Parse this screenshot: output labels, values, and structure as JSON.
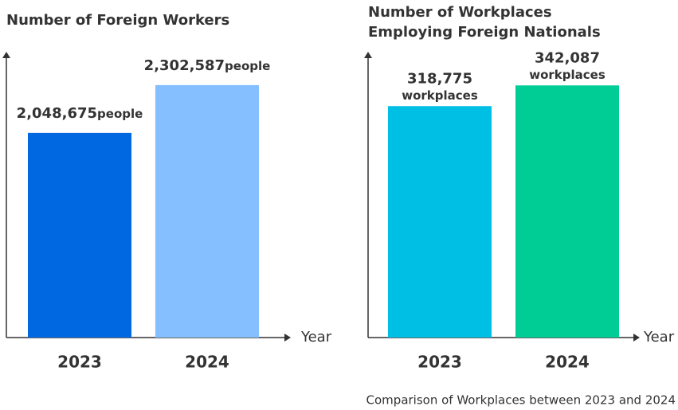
{
  "chart_data": [
    {
      "type": "bar",
      "title": [
        "Number of Foreign Workers"
      ],
      "categories": [
        "2023",
        "2024"
      ],
      "values": [
        2048675,
        2302587
      ],
      "value_labels": [
        "2,048,675",
        "2,302,587"
      ],
      "value_unit": "people",
      "unit_layout": "inline",
      "colors": [
        "#0068e0",
        "#86bfff"
      ],
      "xlabel": "Year",
      "ylim": [
        960000,
        2480000
      ]
    },
    {
      "type": "bar",
      "title": [
        "Number of Workplaces",
        "Employing Foreign Nationals"
      ],
      "categories": [
        "2023",
        "2024"
      ],
      "values": [
        318775,
        342087
      ],
      "value_labels": [
        "318,775",
        "342,087"
      ],
      "value_unit": "workplaces",
      "unit_layout": "below",
      "colors": [
        "#00bfe4",
        "#00cc96"
      ],
      "xlabel": "Year",
      "ylim": [
        58000,
        380000
      ]
    }
  ],
  "footnote": "Comparison of Workplaces between 2023 and 2024"
}
